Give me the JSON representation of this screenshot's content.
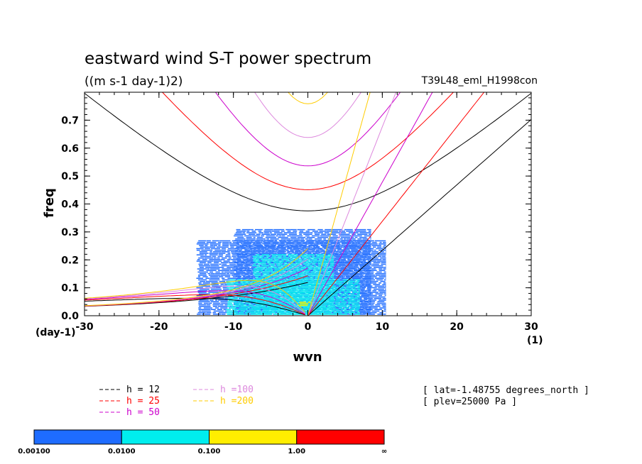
{
  "chart_data": {
    "type": "heatmap",
    "title": "eastward wind S-T power spectrum",
    "subtitle": "((m s-1 day-1)2)",
    "run_label": "T39L48_eml_H1998con",
    "xlabel": "wvn",
    "ylabel": "freq",
    "x_unit": "(1)",
    "y_unit": "(day-1)",
    "xlim": [
      -30,
      30
    ],
    "ylim": [
      0,
      0.8
    ],
    "x_ticks": [
      "-30",
      "-20",
      "-10",
      "0",
      "10",
      "20",
      "30"
    ],
    "y_ticks": [
      "0.0",
      "0.1",
      "0.2",
      "0.3",
      "0.4",
      "0.5",
      "0.6",
      "0.7"
    ],
    "x_tick_values": [
      -30,
      -20,
      -10,
      0,
      10,
      20,
      30
    ],
    "y_tick_values": [
      0,
      0.1,
      0.2,
      0.3,
      0.4,
      0.5,
      0.6,
      0.7
    ],
    "dispersion_curves": {
      "equivalent_depths_m": [
        12,
        25,
        50,
        100,
        200
      ],
      "colors": {
        "12": "#000000",
        "25": "#ff0000",
        "50": "#cc00cc",
        "100": "#dd88dd",
        "200": "#ffcc00"
      },
      "legend": [
        {
          "label": "h = 12",
          "color": "#000000"
        },
        {
          "label": "h = 25",
          "color": "#ff0000"
        },
        {
          "label": "h = 50",
          "color": "#cc00cc"
        },
        {
          "label": "h =100",
          "color": "#dd88dd"
        },
        {
          "label": "h =200",
          "color": "#ffcc00"
        }
      ]
    },
    "power_regions": [
      {
        "level": "0.00100-0.0100",
        "color": "#1e6cff",
        "x": [
          -15,
          10.5
        ],
        "y": [
          0.0,
          0.27
        ]
      },
      {
        "level": "0.00100-0.0100",
        "color": "#1e6cff",
        "x": [
          -10,
          8.5
        ],
        "y": [
          0.0,
          0.31
        ]
      },
      {
        "level": "0.0100-0.100",
        "color": "#00eeee",
        "x": [
          -11,
          7
        ],
        "y": [
          0.0,
          0.13
        ]
      },
      {
        "level": "0.0100-0.100",
        "color": "#00eeee",
        "x": [
          -7.5,
          3.5
        ],
        "y": [
          0.0,
          0.22
        ]
      },
      {
        "level": "0.100-1.00",
        "color": "#ffee00",
        "x": [
          -1.5,
          0.5
        ],
        "y": [
          0.03,
          0.05
        ]
      }
    ],
    "colorbar": {
      "colors": [
        "#1e6cff",
        "#00eeee",
        "#ffee00",
        "#ff0000"
      ],
      "labels": [
        "0.00100",
        "0.0100",
        "0.100",
        "1.00",
        "∞"
      ]
    },
    "annotations": [
      "[ lat=-1.48755 degrees_north ]",
      "[ plev=25000 Pa ]"
    ]
  }
}
